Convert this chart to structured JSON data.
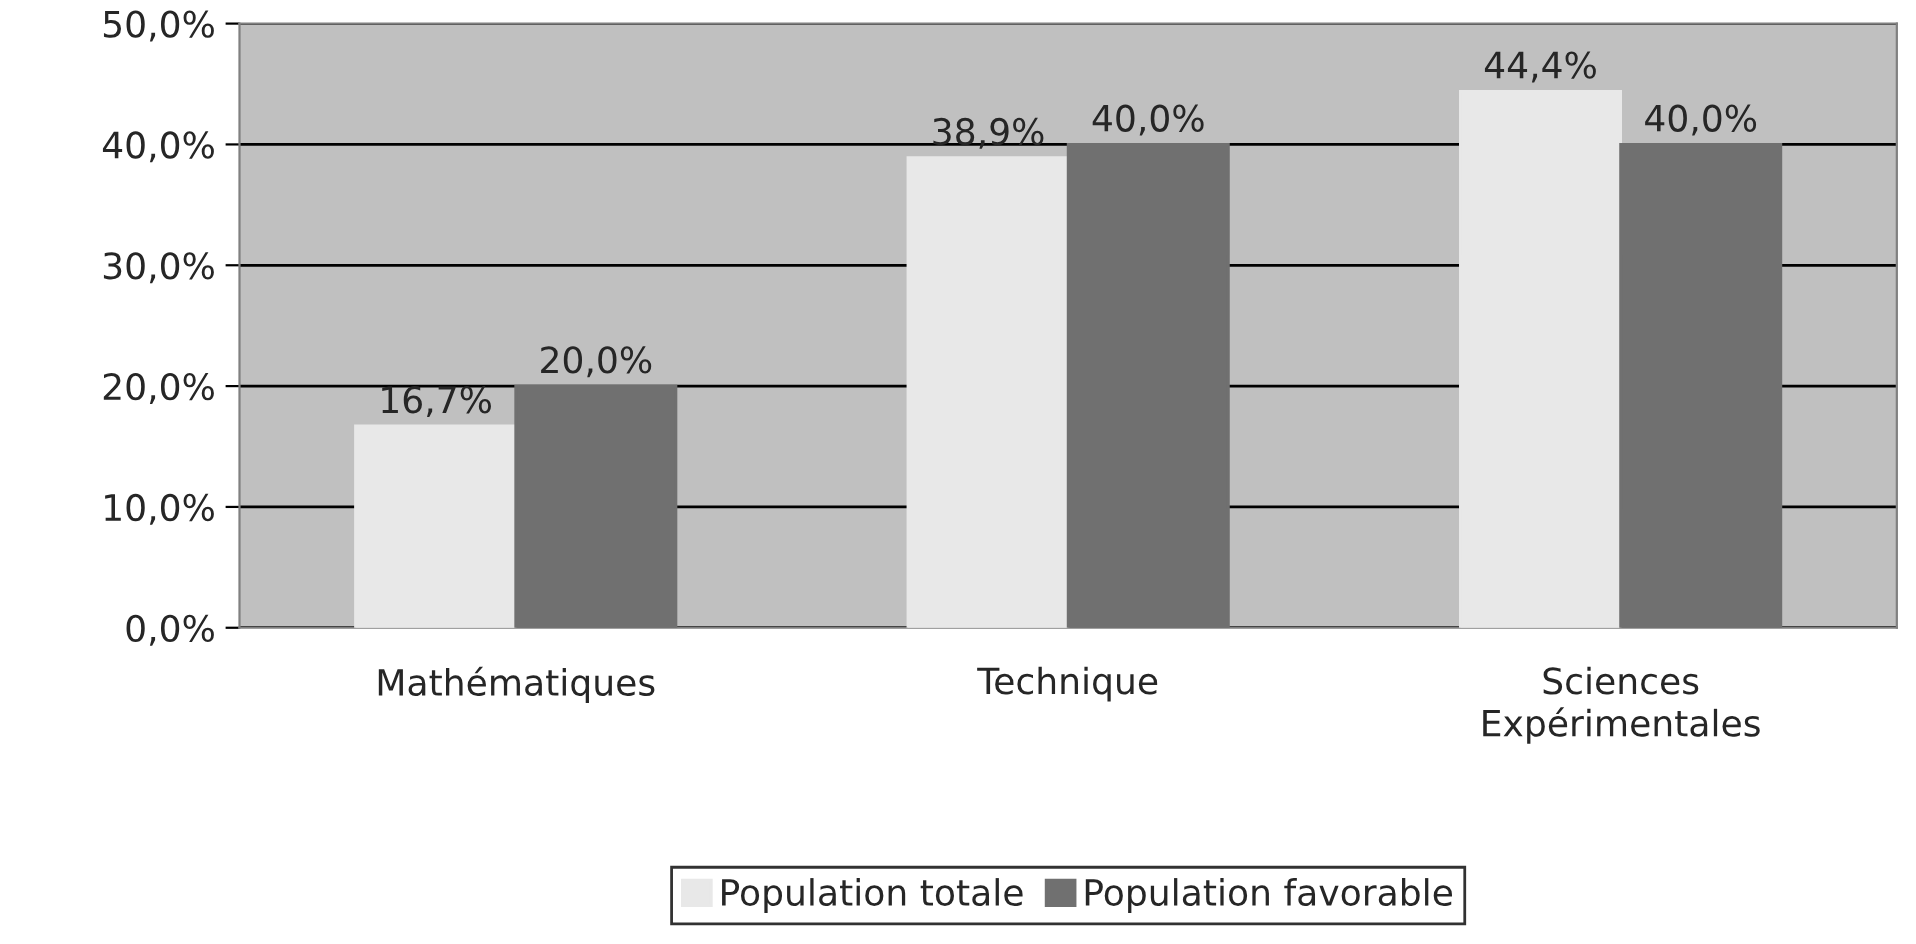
{
  "chart_data": {
    "type": "bar",
    "categories": [
      "Mathématiques",
      "Technique",
      "Sciences\nExpérimentales"
    ],
    "series": [
      {
        "name": "Population totale",
        "color": "#e8e8e8",
        "values": [
          16.7,
          38.9,
          44.4
        ],
        "value_labels": [
          "16,7%",
          "38,9%",
          "44,4%"
        ]
      },
      {
        "name": "Population favorable",
        "color": "#707070",
        "values": [
          20.0,
          40.0,
          40.0
        ],
        "value_labels": [
          "20,0%",
          "40,0%",
          "40,0%"
        ]
      }
    ],
    "ylim": [
      0,
      50
    ],
    "yticks": [
      {
        "value": 0,
        "label": "0,0%"
      },
      {
        "value": 10,
        "label": "10,0%"
      },
      {
        "value": 20,
        "label": "20,0%"
      },
      {
        "value": 30,
        "label": "30,0%"
      },
      {
        "value": 40,
        "label": "40,0%"
      },
      {
        "value": 50,
        "label": "50,0%"
      }
    ],
    "grid": "y",
    "legend": "bottom"
  }
}
